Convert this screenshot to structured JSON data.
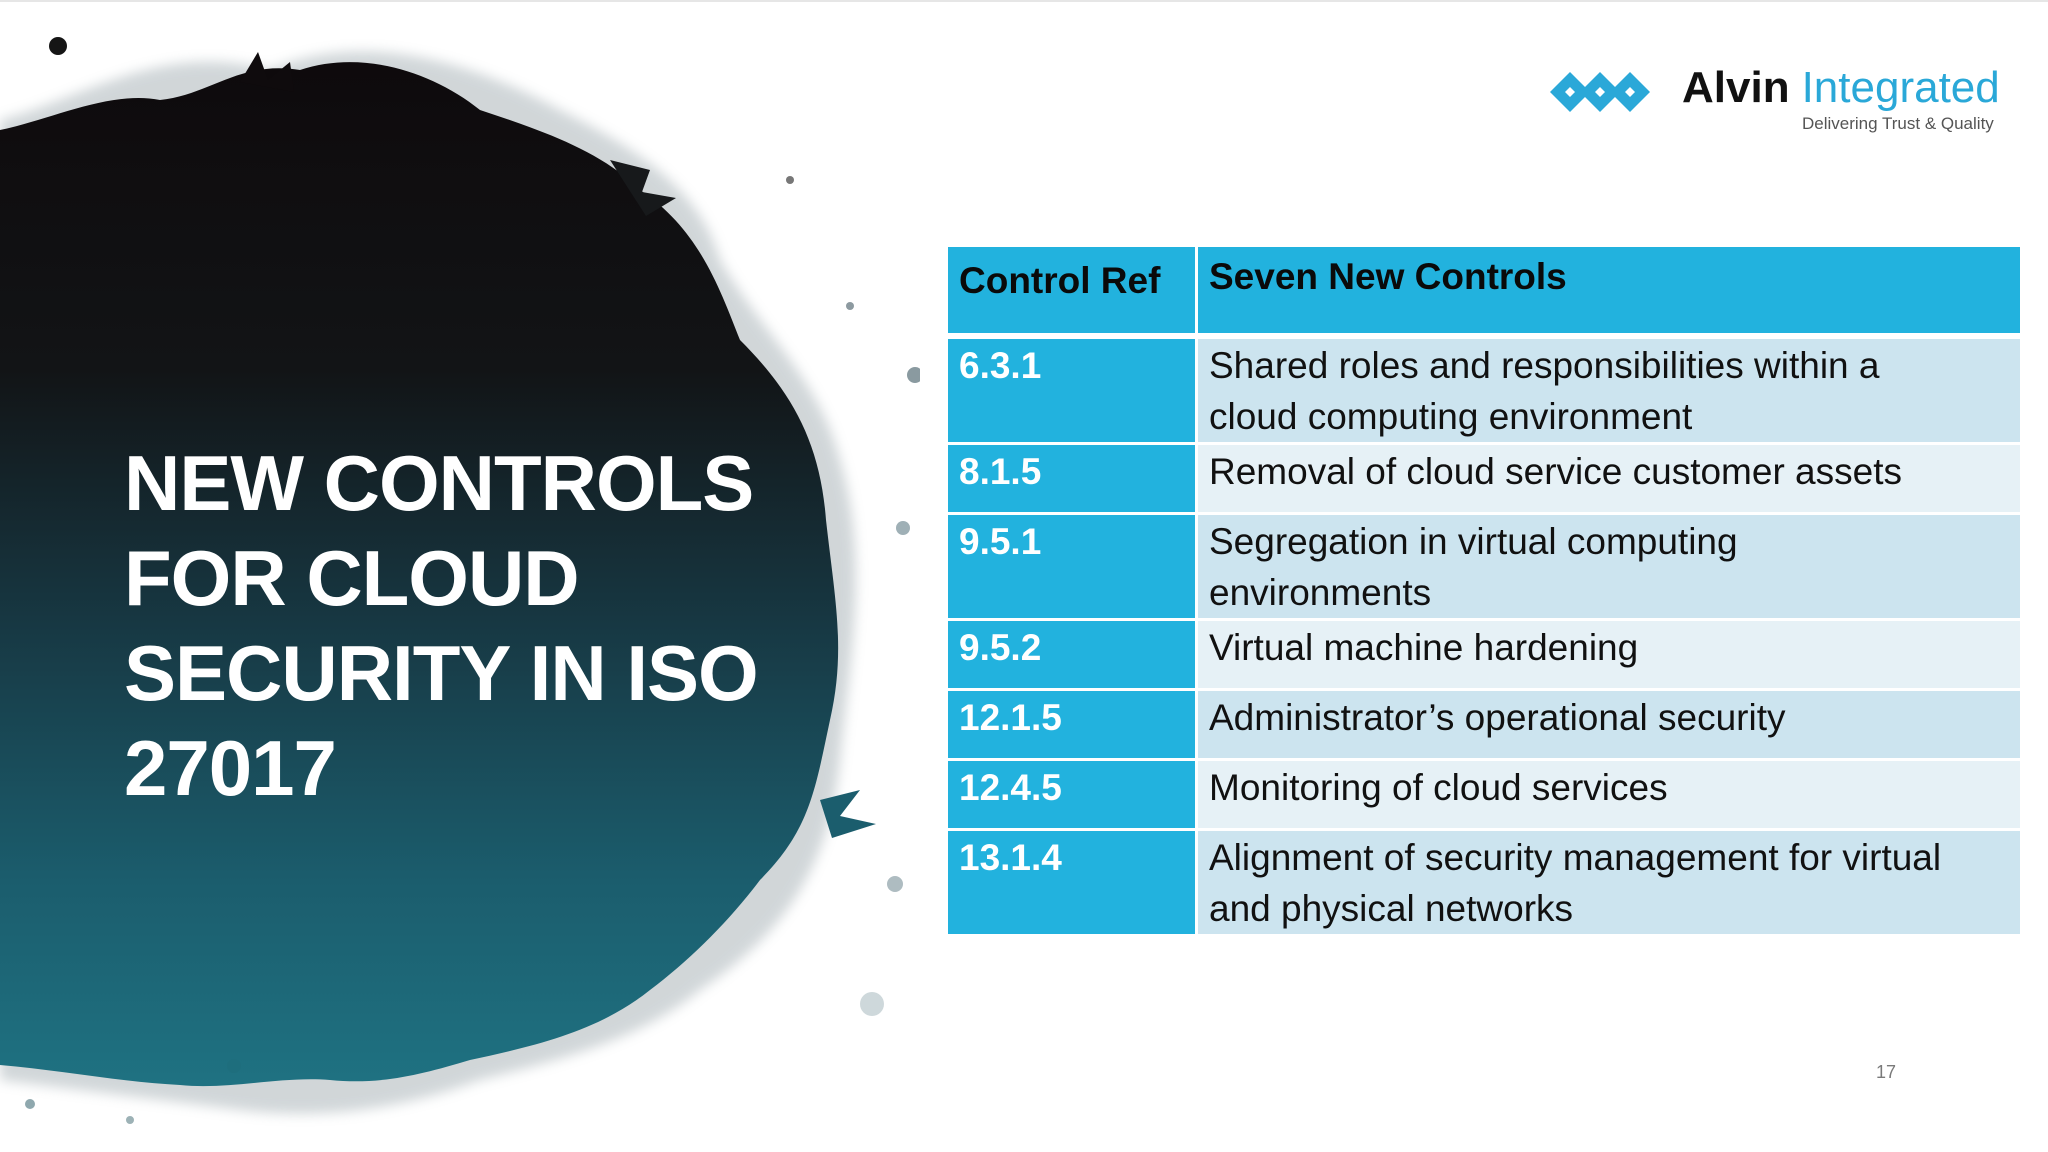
{
  "slide": {
    "title_lines": [
      "NEW CONTROLS",
      "FOR CLOUD",
      "SECURITY IN ISO",
      "27017"
    ],
    "page_number": "17"
  },
  "logo": {
    "name_bold": "Alvin",
    "name_light": "Integrated",
    "tagline": "Delivering Trust & Quality",
    "icon": "diamond-chain-icon"
  },
  "table": {
    "headers": {
      "ref": "Control Ref",
      "name": "Seven New Controls"
    },
    "rows": [
      {
        "ref": "6.3.1",
        "name_lines": [
          "Shared roles and responsibilities within a",
          "cloud computing environment"
        ]
      },
      {
        "ref": "8.1.5",
        "name_lines": [
          "Removal of cloud service customer assets"
        ]
      },
      {
        "ref": "9.5.1",
        "name_lines": [
          "Segregation in virtual computing",
          "environments"
        ]
      },
      {
        "ref": "9.5.2",
        "name_lines": [
          "Virtual machine hardening"
        ]
      },
      {
        "ref": "12.1.5",
        "name_lines": [
          "Administrator’s operational security"
        ]
      },
      {
        "ref": "12.4.5",
        "name_lines": [
          "Monitoring of cloud services"
        ]
      },
      {
        "ref": "13.1.4",
        "name_lines": [
          "Alignment of security management for virtual",
          "and physical networks"
        ]
      }
    ]
  },
  "colors": {
    "header_cyan": "#22b2de",
    "row_light_1": "#cce4ef",
    "row_light_2": "#e6f1f6",
    "blob_dark": "#0d0a0c",
    "blob_teal": "#1b6e80",
    "logo_blue": "#2aa8d8"
  }
}
